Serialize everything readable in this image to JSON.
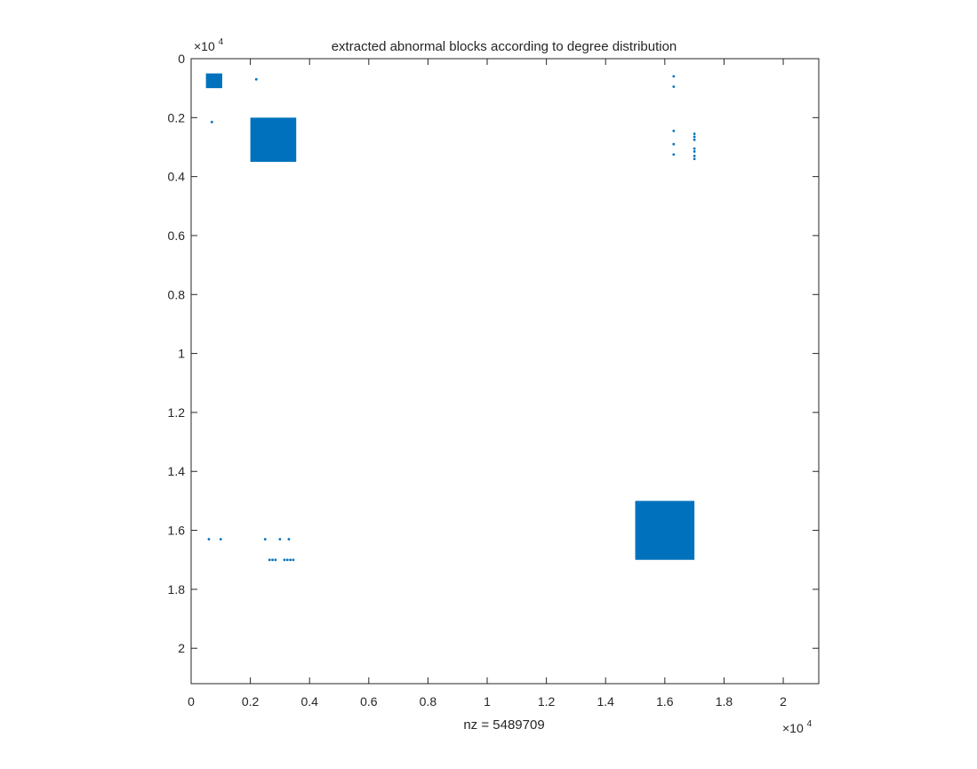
{
  "chart_data": {
    "type": "scatter",
    "title": "extracted abnormal blocks according to degree distribution",
    "xlabel": "nz = 5489709",
    "ylabel": "",
    "xlim": [
      0,
      21200
    ],
    "ylim": [
      0,
      21200
    ],
    "y_reversed": true,
    "grid": false,
    "legend": "none",
    "marker_color": "#0072BD",
    "x_ticks": [
      0,
      2000,
      4000,
      6000,
      8000,
      10000,
      12000,
      14000,
      16000,
      18000,
      20000
    ],
    "x_tick_labels": [
      "0",
      "0.2",
      "0.4",
      "0.6",
      "0.8",
      "1",
      "1.2",
      "1.4",
      "1.6",
      "1.8",
      "2"
    ],
    "y_ticks": [
      0,
      2000,
      4000,
      6000,
      8000,
      10000,
      12000,
      14000,
      16000,
      18000,
      20000
    ],
    "y_tick_labels": [
      "0",
      "0.2",
      "0.4",
      "0.6",
      "0.8",
      "1",
      "1.2",
      "1.4",
      "1.6",
      "1.8",
      "2"
    ],
    "x_exponent": {
      "base": "×10",
      "power": "4"
    },
    "y_exponent": {
      "base": "×10",
      "power": "4"
    },
    "blocks": [
      {
        "x": [
          500,
          1050
        ],
        "y": [
          500,
          1000
        ]
      },
      {
        "x": [
          2000,
          3550
        ],
        "y": [
          2000,
          3500
        ]
      },
      {
        "x": [
          15000,
          17000
        ],
        "y": [
          15000,
          17000
        ]
      }
    ],
    "points": [
      [
        2200,
        700
      ],
      [
        700,
        2150
      ],
      [
        16300,
        600
      ],
      [
        16300,
        950
      ],
      [
        16300,
        2450
      ],
      [
        16300,
        2900
      ],
      [
        16300,
        3250
      ],
      [
        17000,
        2550
      ],
      [
        17000,
        2650
      ],
      [
        17000,
        2750
      ],
      [
        17000,
        3050
      ],
      [
        17000,
        3150
      ],
      [
        17000,
        3300
      ],
      [
        17000,
        3400
      ],
      [
        600,
        16300
      ],
      [
        1000,
        16300
      ],
      [
        2500,
        16300
      ],
      [
        3000,
        16300
      ],
      [
        3300,
        16300
      ],
      [
        2650,
        17000
      ],
      [
        2750,
        17000
      ],
      [
        2850,
        17000
      ],
      [
        3150,
        17000
      ],
      [
        3250,
        17000
      ],
      [
        3350,
        17000
      ],
      [
        3450,
        17000
      ]
    ]
  }
}
